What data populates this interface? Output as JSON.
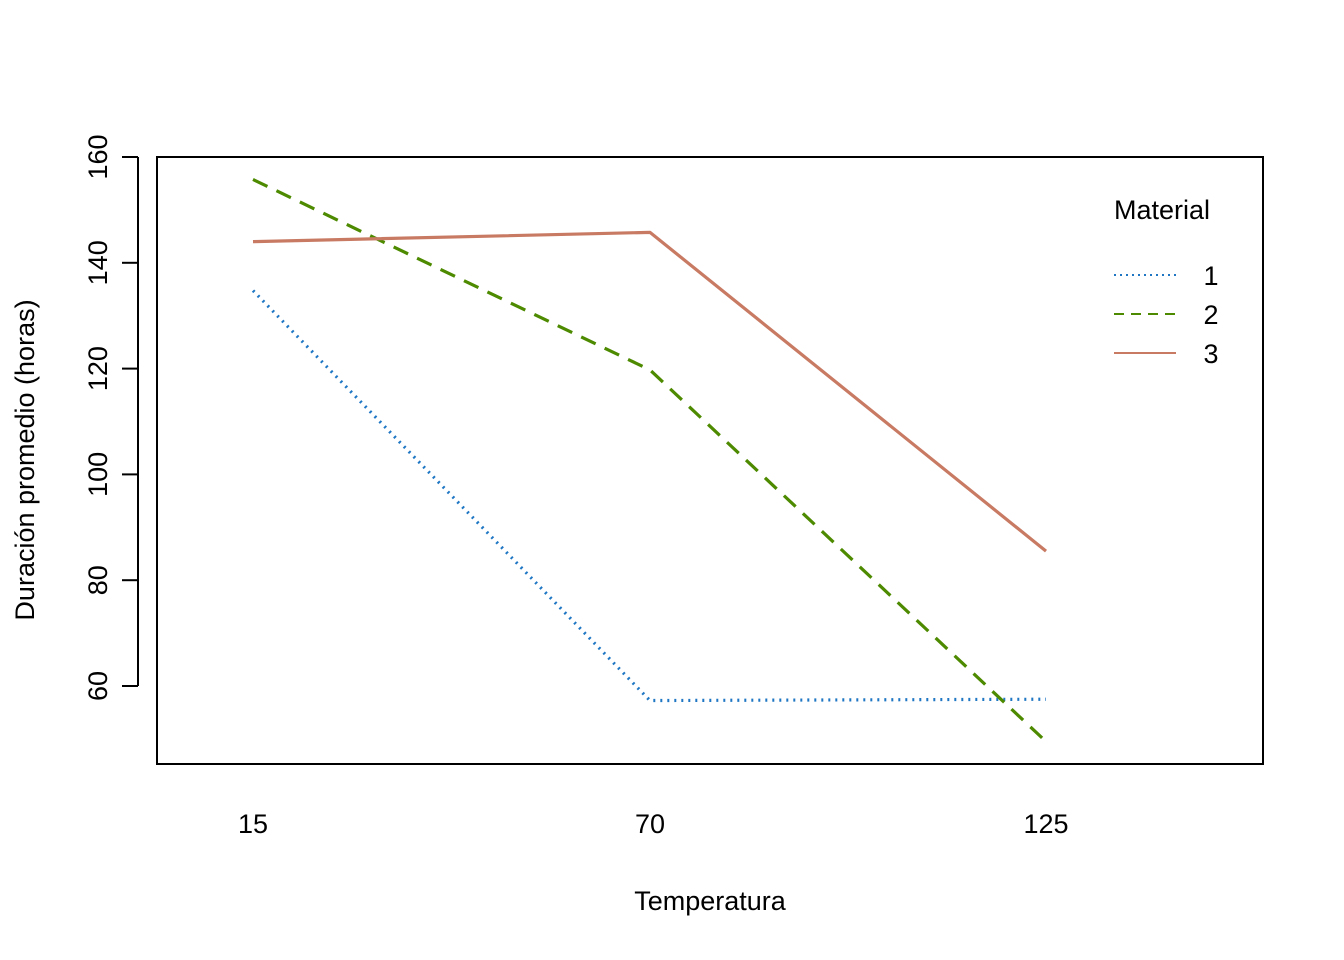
{
  "chart_data": {
    "type": "line",
    "xlabel": "Temperatura",
    "ylabel": "Duración promedio (horas)",
    "x": [
      "15",
      "70",
      "125"
    ],
    "yticks": [
      "60",
      "80",
      "100",
      "120",
      "140",
      "160"
    ],
    "ylim": [
      45,
      160
    ],
    "grid": false,
    "legend": {
      "title": "Material",
      "placement": "top-right"
    },
    "series": [
      {
        "name": "1",
        "values": [
          134.75,
          57.25,
          57.5
        ],
        "color": "#1f77c4",
        "dash": "dotted"
      },
      {
        "name": "2",
        "values": [
          155.75,
          119.75,
          49.5
        ],
        "color": "#4d8a00",
        "dash": "dashed"
      },
      {
        "name": "3",
        "values": [
          144.0,
          145.75,
          85.5
        ],
        "color": "#c87a63",
        "dash": "solid"
      }
    ]
  }
}
